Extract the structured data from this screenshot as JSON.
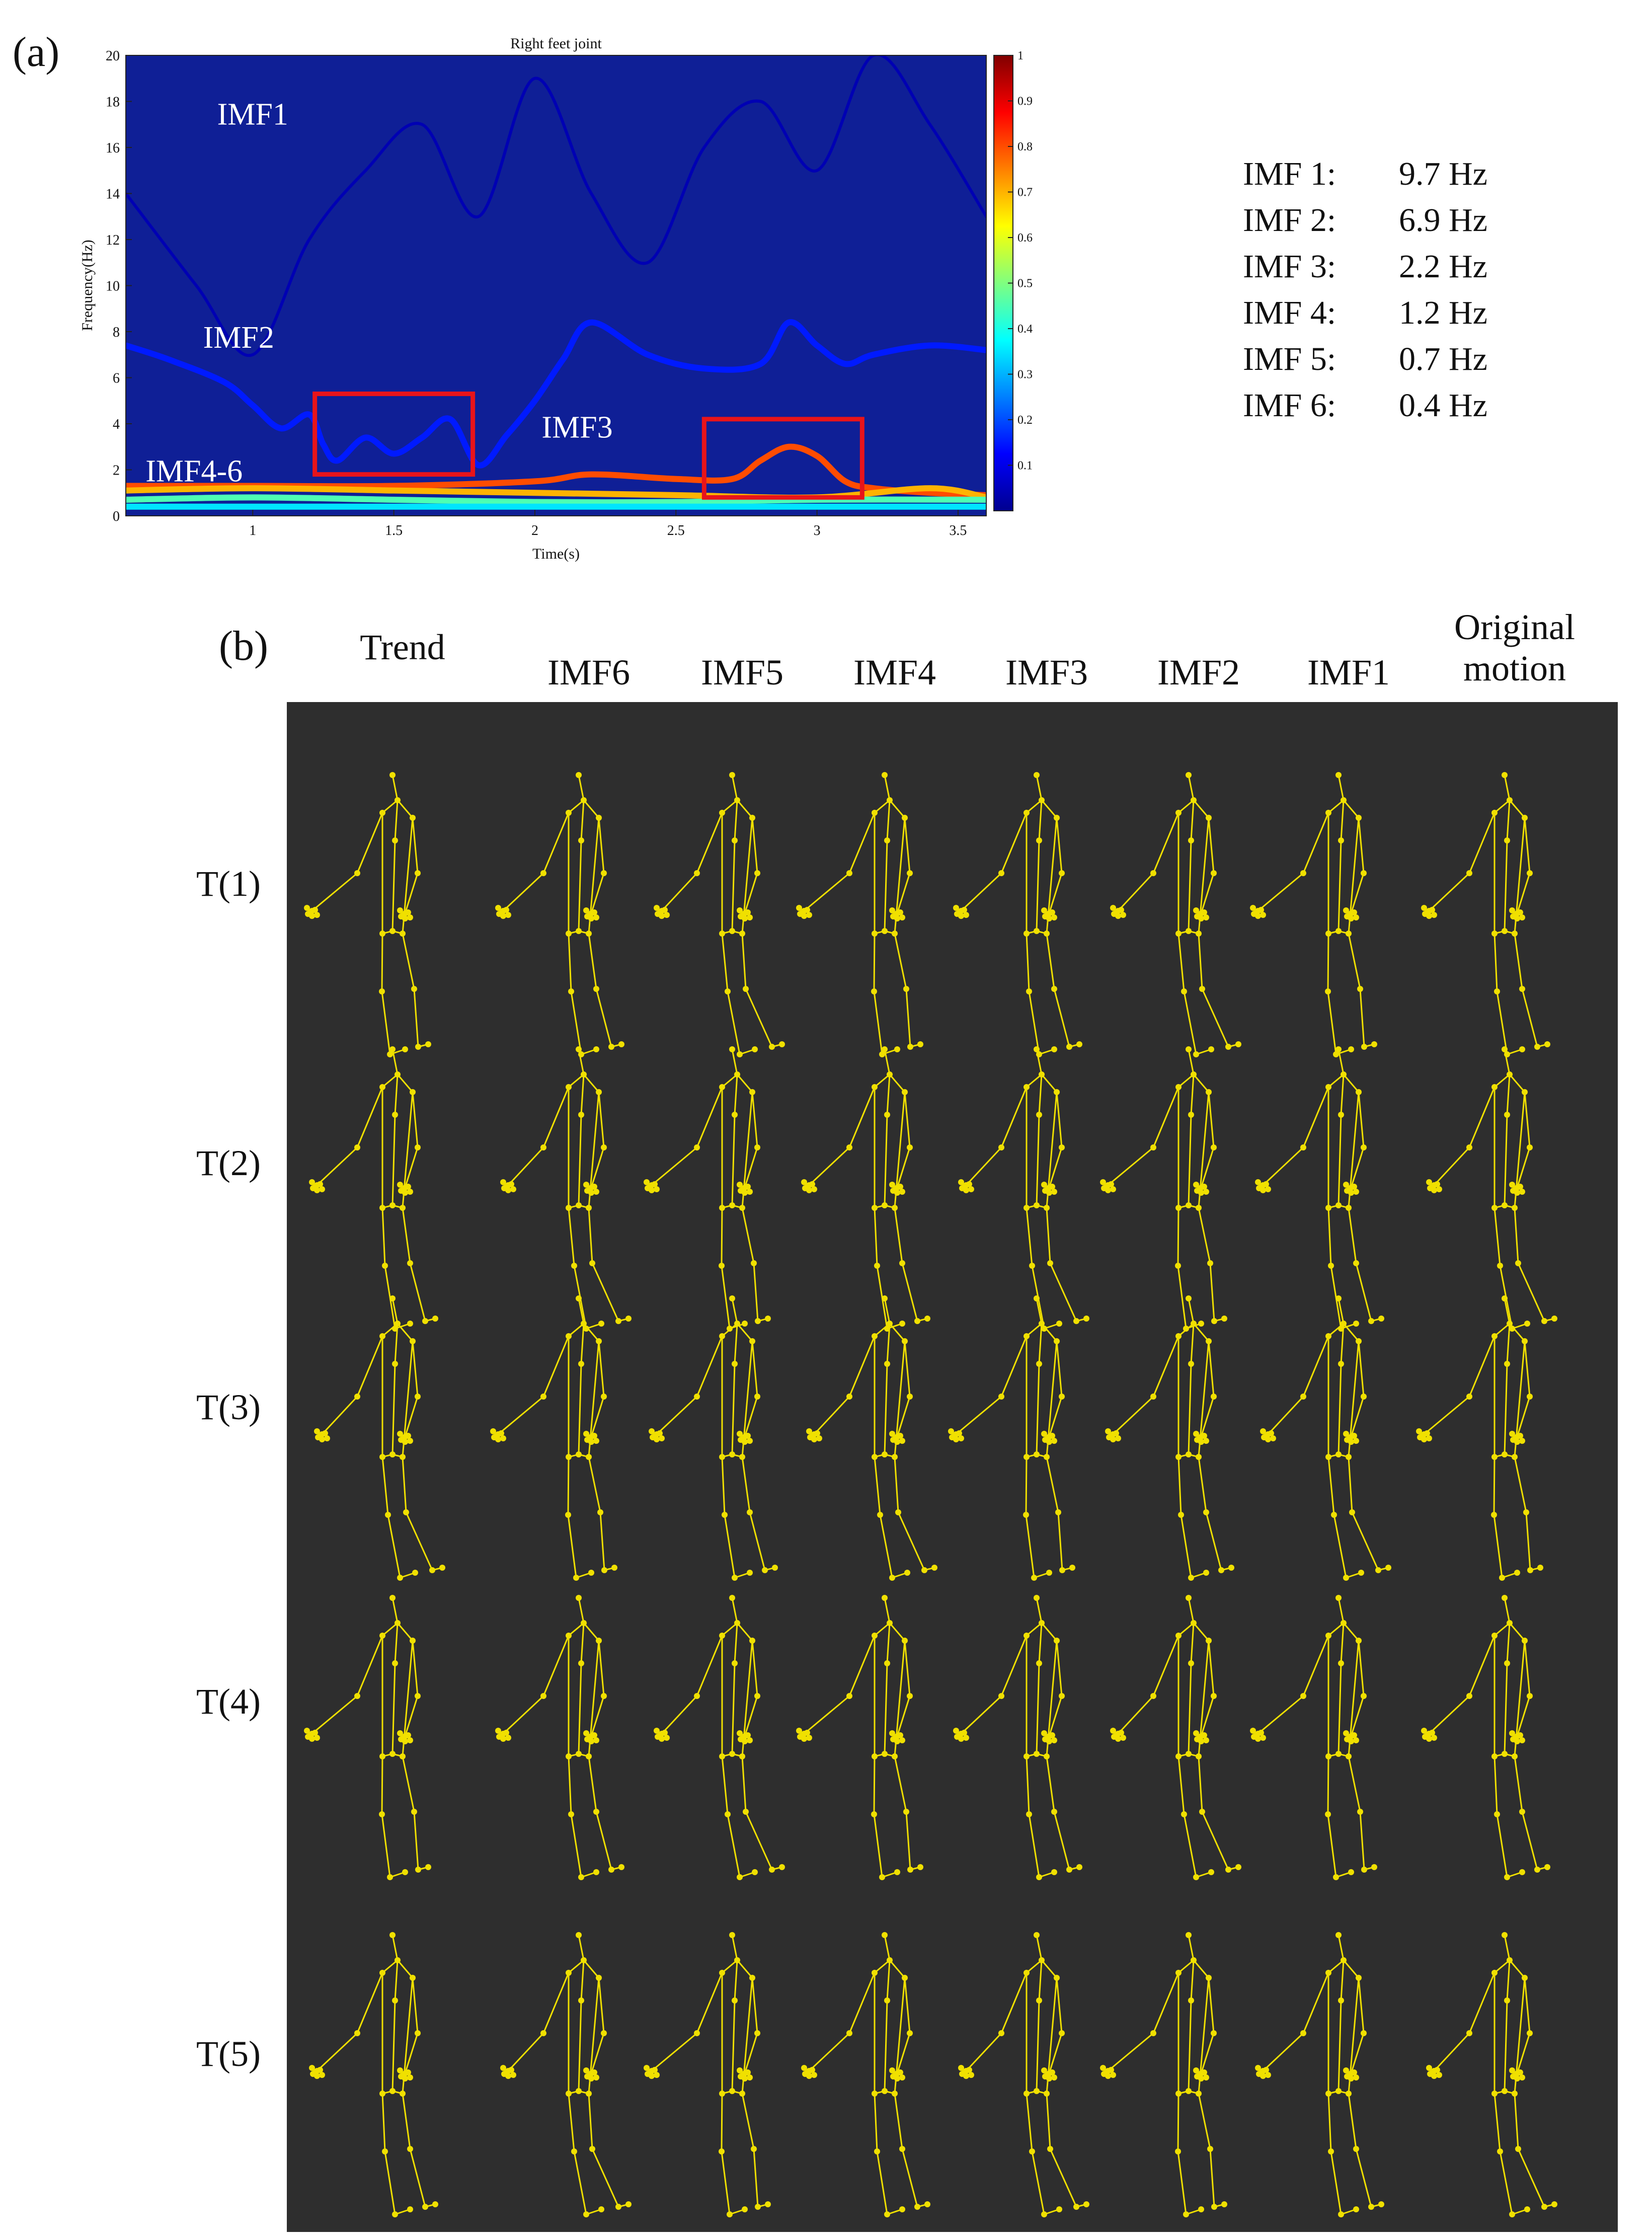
{
  "panel_a_label": "(a)",
  "panel_b_label": "(b)",
  "chart_data": {
    "type": "heatmap",
    "title": "Right feet joint",
    "xlabel": "Time(s)",
    "ylabel": "Frequency(Hz)",
    "xlim": [
      0.55,
      3.6
    ],
    "ylim": [
      0,
      20
    ],
    "xticks": [
      "1",
      "1.5",
      "2",
      "2.5",
      "3",
      "3.5"
    ],
    "yticks": [
      "0",
      "2",
      "4",
      "6",
      "8",
      "10",
      "12",
      "14",
      "16",
      "18",
      "20"
    ],
    "colorbar_ticks": [
      "0.1",
      "0.2",
      "0.3",
      "0.4",
      "0.5",
      "0.6",
      "0.7",
      "0.8",
      "0.9",
      "1"
    ],
    "colorbar_range": [
      0,
      1
    ],
    "colormap": "jet",
    "grid": false,
    "series": [
      {
        "name": "IMF1",
        "x": [
          0.55,
          0.8,
          1.0,
          1.2,
          1.4,
          1.6,
          1.8,
          2.0,
          2.2,
          2.4,
          2.6,
          2.8,
          3.0,
          3.2,
          3.4,
          3.6
        ],
        "y": [
          14,
          10,
          7,
          12,
          15,
          17,
          13,
          19,
          14,
          11,
          16,
          18,
          15,
          20,
          17,
          13
        ],
        "intensity": 0.05
      },
      {
        "name": "IMF2",
        "x": [
          0.55,
          0.7,
          0.9,
          1.0,
          1.1,
          1.2,
          1.25,
          1.3,
          1.4,
          1.5,
          1.6,
          1.7,
          1.8,
          1.9,
          2.0,
          2.1,
          2.2,
          2.4,
          2.6,
          2.8,
          2.9,
          3.0,
          3.1,
          3.2,
          3.4,
          3.6
        ],
        "y": [
          7.4,
          6.8,
          5.8,
          4.8,
          3.8,
          4.4,
          3.1,
          2.4,
          3.4,
          2.7,
          3.4,
          4.2,
          2.2,
          3.5,
          5.0,
          6.8,
          8.4,
          7.0,
          6.4,
          6.6,
          8.4,
          7.4,
          6.6,
          7.0,
          7.4,
          7.2
        ],
        "intensity": 0.15
      },
      {
        "name": "IMF3",
        "x": [
          0.55,
          1.0,
          1.5,
          2.0,
          2.2,
          2.5,
          2.7,
          2.8,
          2.9,
          3.0,
          3.1,
          3.2,
          3.4,
          3.6
        ],
        "y": [
          1.3,
          1.3,
          1.3,
          1.5,
          1.8,
          1.6,
          1.6,
          2.4,
          3.0,
          2.6,
          1.5,
          1.2,
          1.0,
          0.9
        ],
        "intensity": 0.8
      },
      {
        "name": "IMF4",
        "x": [
          0.55,
          1.0,
          1.5,
          2.0,
          2.5,
          3.0,
          3.4,
          3.6
        ],
        "y": [
          1.1,
          1.2,
          1.1,
          1.0,
          0.9,
          0.8,
          1.2,
          0.8
        ],
        "intensity": 0.7
      },
      {
        "name": "IMF5",
        "x": [
          0.55,
          1.0,
          1.5,
          2.0,
          2.5,
          3.0,
          3.6
        ],
        "y": [
          0.7,
          0.8,
          0.7,
          0.6,
          0.6,
          0.7,
          0.7
        ],
        "intensity": 0.45
      },
      {
        "name": "IMF6",
        "x": [
          0.55,
          1.0,
          1.5,
          2.0,
          2.5,
          3.0,
          3.6
        ],
        "y": [
          0.4,
          0.4,
          0.4,
          0.4,
          0.4,
          0.4,
          0.4
        ],
        "intensity": 0.35
      }
    ],
    "annotations": [
      "IMF1",
      "IMF2",
      "IMF3",
      "IMF4-6"
    ],
    "highlight_boxes": [
      {
        "x": [
          1.22,
          1.78
        ],
        "y": [
          1.8,
          5.3
        ]
      },
      {
        "x": [
          2.6,
          3.16
        ],
        "y": [
          0.8,
          4.2
        ]
      }
    ]
  },
  "legend": [
    {
      "name": "IMF 1:",
      "value": "9.7 Hz"
    },
    {
      "name": "IMF 2:",
      "value": "6.9 Hz"
    },
    {
      "name": "IMF 3:",
      "value": "2.2 Hz"
    },
    {
      "name": "IMF 4:",
      "value": "1.2 Hz"
    },
    {
      "name": "IMF 5:",
      "value": "0.7 Hz"
    },
    {
      "name": "IMF 6:",
      "value": "0.4 Hz"
    }
  ],
  "motion_grid": {
    "columns": [
      "Trend",
      "IMF6",
      "IMF5",
      "IMF4",
      "IMF3",
      "IMF2",
      "IMF1",
      "Original motion"
    ],
    "rows": [
      "T(1)",
      "T(2)",
      "T(3)",
      "T(4)",
      "T(5)"
    ],
    "figure_color": "#f0e000",
    "background_color": "#2e2e2e"
  },
  "colors": {
    "highlight_box": "#e8141a",
    "plot_background": "#0f1f96"
  }
}
